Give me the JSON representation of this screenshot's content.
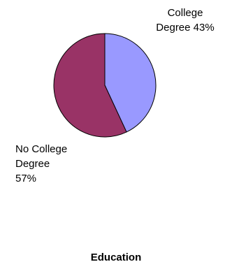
{
  "chart_data": {
    "type": "pie",
    "title": "Education",
    "slices": [
      {
        "label_lines": [
          "College",
          "Degree 43%"
        ],
        "value": 43,
        "color": "#9999ff"
      },
      {
        "label_lines": [
          "No College",
          "Degree",
          "57%"
        ],
        "value": 57,
        "color": "#993366"
      }
    ]
  }
}
